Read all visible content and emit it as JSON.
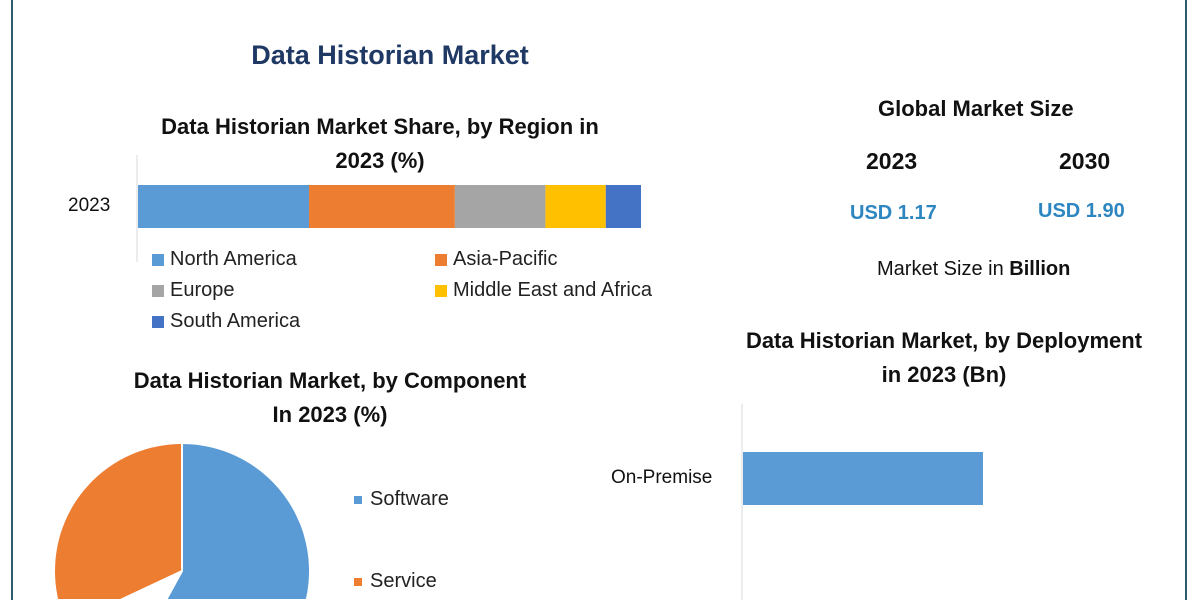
{
  "main_title": "Data Historian Market",
  "colors": {
    "north_america": "#5b9bd5",
    "asia_pacific": "#ed7d31",
    "europe": "#a5a5a5",
    "mea": "#ffc000",
    "south_america": "#4472c4",
    "title": "#1f3864",
    "usd": "#2e86c1"
  },
  "global": {
    "title": "Global Market Size",
    "years": [
      "2023",
      "2030"
    ],
    "values": [
      "USD 1.17",
      "USD 1.90"
    ],
    "note_prefix": "Market Size in ",
    "note_bold": "Billion"
  },
  "chart_data": [
    {
      "type": "bar",
      "orientation": "horizontal-stacked",
      "title_line1": "Data Historian Market Share, by Region in",
      "title_line2": "2023 (%)",
      "categories": [
        "2023"
      ],
      "series": [
        {
          "name": "North America",
          "values": [
            34
          ],
          "color": "#5b9bd5"
        },
        {
          "name": "Asia-Pacific",
          "values": [
            29
          ],
          "color": "#ed7d31"
        },
        {
          "name": "Europe",
          "values": [
            18
          ],
          "color": "#a5a5a5"
        },
        {
          "name": "Middle East and Africa",
          "values": [
            12
          ],
          "color": "#ffc000"
        },
        {
          "name": "South America",
          "values": [
            7
          ],
          "color": "#4472c4"
        }
      ],
      "legend": "bottom"
    },
    {
      "type": "pie",
      "title_line1": "Data Historian Market, by Component",
      "title_line2": "In 2023 (%)",
      "slices": [
        {
          "name": "Software",
          "value": 58,
          "color": "#5b9bd5"
        },
        {
          "name": "Service",
          "value": 42,
          "color": "#ed7d31"
        }
      ],
      "legend": "right"
    },
    {
      "type": "bar",
      "orientation": "horizontal",
      "title_line1": "Data Historian Market, by Deployment",
      "title_line2": "in 2023 (Bn)",
      "categories": [
        "On-Premise"
      ],
      "values": [
        0.66
      ],
      "xlim": [
        0,
        1.1
      ],
      "color": "#5b9bd5"
    }
  ]
}
